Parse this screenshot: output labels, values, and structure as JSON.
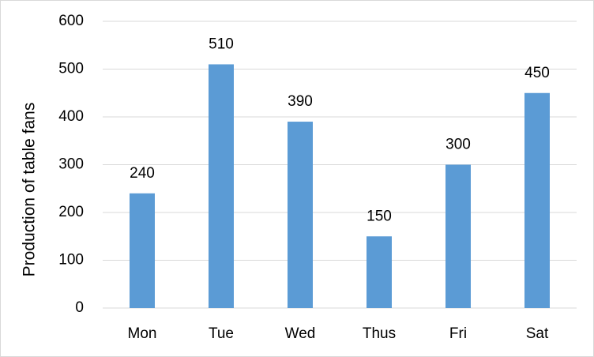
{
  "chart_data": {
    "type": "bar",
    "y_label": "Production of table fans",
    "categories": [
      "Mon",
      "Tue",
      "Wed",
      "Thus",
      "Fri",
      "Sat"
    ],
    "values": [
      240,
      510,
      390,
      150,
      300,
      450
    ],
    "color": "#5b9bd5",
    "ylim": [
      0,
      600
    ],
    "yticks": [
      0,
      100,
      200,
      300,
      400,
      500,
      600
    ],
    "grid": true,
    "data_labels": true
  }
}
